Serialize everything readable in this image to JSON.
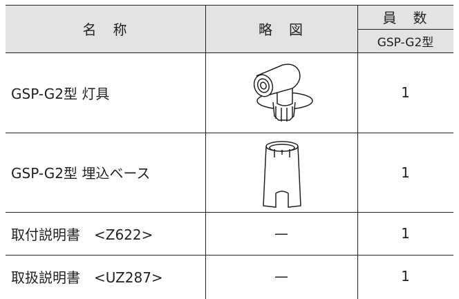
{
  "header": {
    "name": "名　称",
    "sketch": "略　図",
    "count": "員　数",
    "model": "GSP-G2型"
  },
  "rows": [
    {
      "name": "GSP-G2型 灯具",
      "count": 1
    },
    {
      "name": "GSP-G2型 埋込ベース",
      "count": 1
    },
    {
      "name": "取付説明書　<Z622>",
      "sketch": "—",
      "count": 1
    },
    {
      "name": "取扱説明書　<UZ287>",
      "sketch": "—",
      "count": 1
    }
  ]
}
